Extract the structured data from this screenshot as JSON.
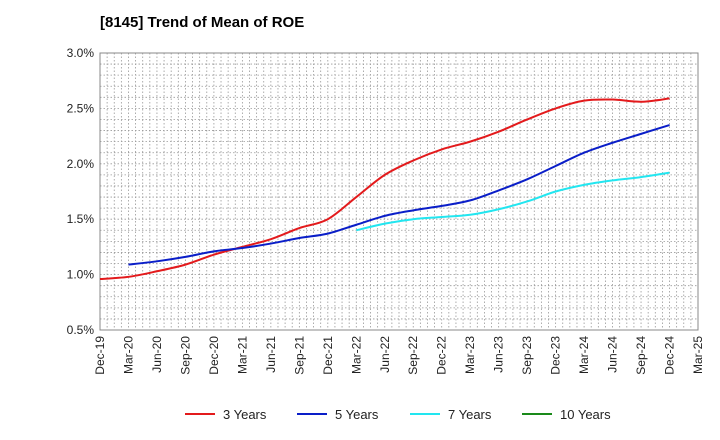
{
  "chart_data": {
    "type": "line",
    "title": "[8145]  Trend of Mean of ROE",
    "xlabel": "",
    "ylabel": "",
    "x": [
      "Dec-19",
      "Mar-20",
      "Jun-20",
      "Sep-20",
      "Dec-20",
      "Mar-21",
      "Jun-21",
      "Sep-21",
      "Dec-21",
      "Mar-22",
      "Jun-22",
      "Sep-22",
      "Dec-22",
      "Mar-23",
      "Jun-23",
      "Sep-23",
      "Dec-23",
      "Mar-24",
      "Jun-24",
      "Sep-24",
      "Dec-24",
      "Mar-25"
    ],
    "ylim": [
      0.5,
      3.0
    ],
    "yticks": [
      "0.5%",
      "1.0%",
      "1.5%",
      "2.0%",
      "2.5%",
      "3.0%"
    ],
    "yticks_values": [
      0.5,
      1.0,
      1.5,
      2.0,
      2.5,
      3.0
    ],
    "grid": true,
    "legend_position": "bottom",
    "series": [
      {
        "name": "3 Years",
        "color": "#e31a1c",
        "values": [
          0.96,
          0.98,
          1.03,
          1.09,
          1.18,
          1.25,
          1.32,
          1.42,
          1.5,
          1.7,
          1.9,
          2.03,
          2.13,
          2.2,
          2.29,
          2.4,
          2.5,
          2.57,
          2.58,
          2.56,
          2.59,
          null
        ]
      },
      {
        "name": "5 Years",
        "color": "#0a1ec8",
        "values": [
          null,
          1.09,
          1.12,
          1.16,
          1.21,
          1.24,
          1.28,
          1.33,
          1.37,
          1.45,
          1.53,
          1.58,
          1.62,
          1.67,
          1.76,
          1.86,
          1.98,
          2.1,
          2.19,
          2.27,
          2.35,
          null
        ]
      },
      {
        "name": "7 Years",
        "color": "#22e6f0",
        "values": [
          null,
          null,
          null,
          null,
          null,
          null,
          null,
          null,
          null,
          1.4,
          1.46,
          1.5,
          1.52,
          1.54,
          1.59,
          1.66,
          1.75,
          1.81,
          1.85,
          1.88,
          1.92,
          null
        ]
      },
      {
        "name": "10 Years",
        "color": "#1a8a1a",
        "values": [
          null,
          null,
          null,
          null,
          null,
          null,
          null,
          null,
          null,
          null,
          null,
          null,
          null,
          null,
          null,
          null,
          null,
          null,
          null,
          null,
          null,
          null
        ]
      }
    ]
  }
}
